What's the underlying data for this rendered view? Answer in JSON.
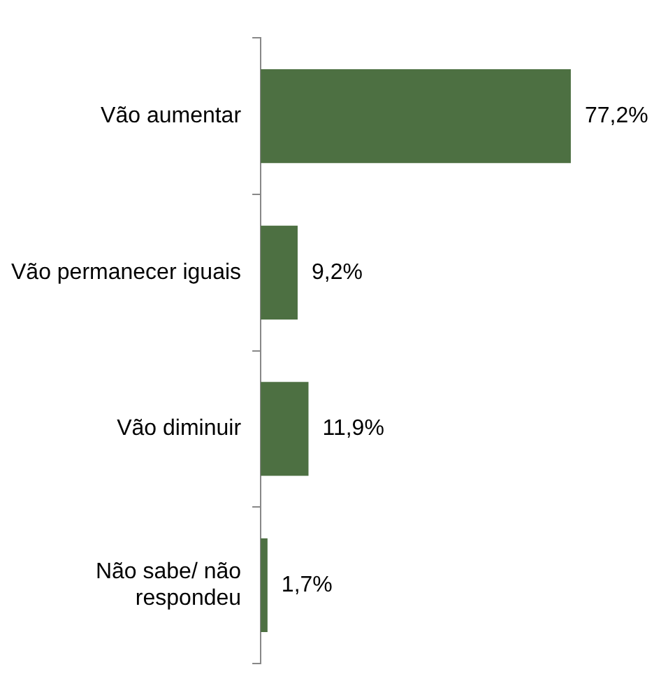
{
  "chart_data": {
    "type": "bar",
    "orientation": "horizontal",
    "categories": [
      "Vão aumentar",
      "Vão permanecer iguais",
      "Vão diminuir",
      "Não sabe/ não respondeu"
    ],
    "values": [
      77.2,
      9.2,
      11.9,
      1.7
    ],
    "color": "#4d7042",
    "value_labels": [
      "77,2%",
      "9,2%",
      "11,9%",
      "1,7%"
    ],
    "legend": false
  }
}
